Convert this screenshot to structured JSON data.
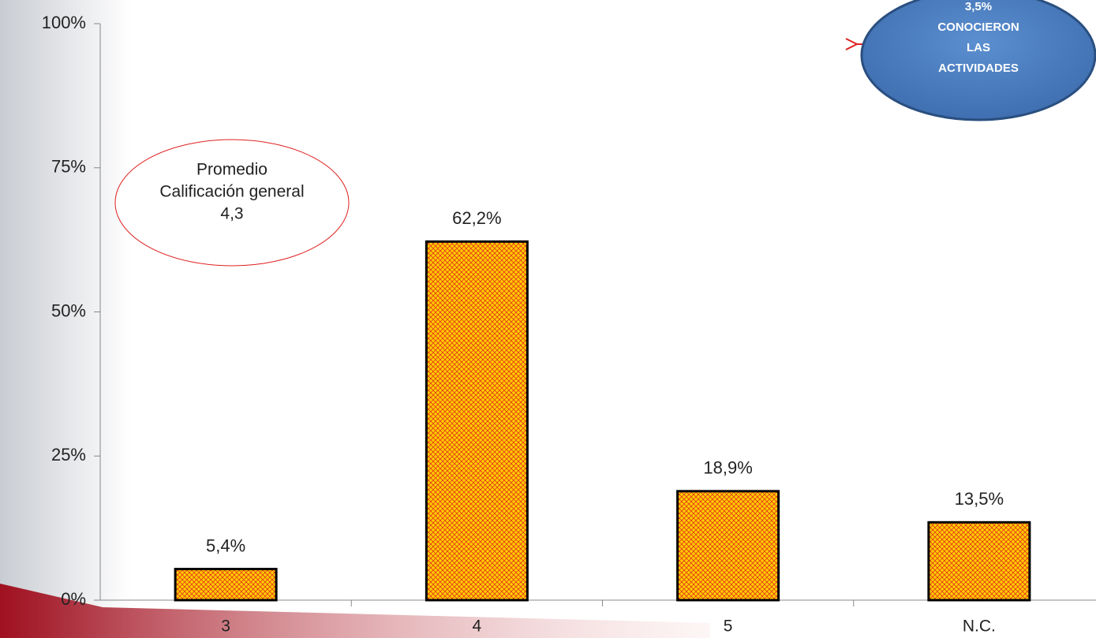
{
  "chart_data": {
    "type": "bar",
    "categories": [
      "3",
      "4",
      "5",
      "N.C."
    ],
    "values": [
      5.4,
      62.2,
      18.9,
      13.5
    ],
    "value_labels": [
      "5,4%",
      "62,2%",
      "18,9%",
      "13,5%"
    ],
    "color": "#ffcc00",
    "hatch_color": "#e02020",
    "ylim": [
      0,
      100
    ],
    "yticks": [
      {
        "value": 0,
        "label": "0%"
      },
      {
        "value": 25,
        "label": "25%"
      },
      {
        "value": 50,
        "label": "50%"
      },
      {
        "value": 75,
        "label": "75%"
      },
      {
        "value": 100,
        "label": "100%"
      }
    ],
    "grid": false,
    "annotations": [
      {
        "lines": [
          "Promedio",
          "Calificación general",
          "4,3"
        ]
      },
      {
        "lines": [
          "3,5%",
          "CONOCIERON",
          "LAS",
          "ACTIVIDADES"
        ]
      }
    ]
  }
}
